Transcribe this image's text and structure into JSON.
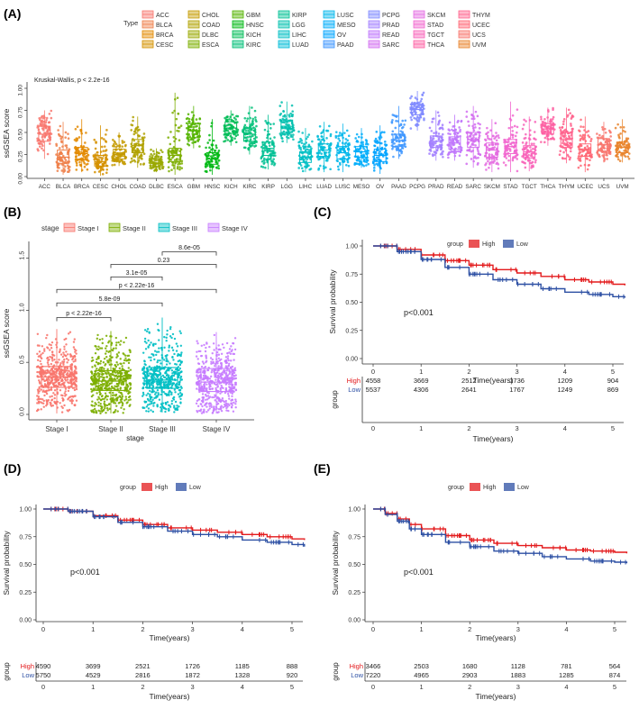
{
  "panels": {
    "A": {
      "label": "(A)"
    },
    "B": {
      "label": "(B)"
    },
    "C": {
      "label": "(C)"
    },
    "D": {
      "label": "(D)"
    },
    "E": {
      "label": "(E)"
    }
  },
  "chart_data": [
    {
      "id": "A",
      "type": "box",
      "title": "",
      "annotation": "Kruskal-Wallis, p < 2.2e-16",
      "xlabel": "",
      "ylabel": "ssGSEA score",
      "ylim": [
        0,
        1
      ],
      "yticks": [
        "0.00",
        "0.25",
        "0.50",
        "0.75",
        "1.00"
      ],
      "legend_title": "Type",
      "categories": [
        "ACC",
        "BLCA",
        "BRCA",
        "CESC",
        "CHOL",
        "COAD",
        "DLBC",
        "ESCA",
        "GBM",
        "HNSC",
        "KICH",
        "KIRC",
        "KIRP",
        "LGG",
        "LIHC",
        "LUAD",
        "LUSC",
        "MESO",
        "OV",
        "PAAD",
        "PCPG",
        "PRAD",
        "READ",
        "SARC",
        "SKCM",
        "STAD",
        "TGCT",
        "THCA",
        "THYM",
        "UCEC",
        "UCS",
        "UVM"
      ],
      "colors": [
        "#F8766D",
        "#EF7F49",
        "#E38900",
        "#D59100",
        "#C49A00",
        "#B0A100",
        "#99A800",
        "#7CAE00",
        "#53B400",
        "#00B813",
        "#00BC56",
        "#00BF77",
        "#00C094",
        "#00C0AE",
        "#00BFC4",
        "#00BCD8",
        "#00B6EB",
        "#00ADFA",
        "#00A3FF",
        "#3E96FF",
        "#7F89FF",
        "#A27FFF",
        "#BF76FC",
        "#D26DF0",
        "#E46BE1",
        "#F166CF",
        "#F863B9",
        "#FD61A3",
        "#FF628C",
        "#FF6674",
        "#F8766D",
        "#E9842C"
      ],
      "medians": [
        0.48,
        0.22,
        0.26,
        0.17,
        0.25,
        0.35,
        0.15,
        0.24,
        0.52,
        0.2,
        0.55,
        0.48,
        0.32,
        0.57,
        0.22,
        0.3,
        0.27,
        0.28,
        0.24,
        0.41,
        0.76,
        0.4,
        0.38,
        0.42,
        0.3,
        0.34,
        0.28,
        0.54,
        0.42,
        0.3,
        0.36,
        0.33
      ],
      "q1": [
        0.4,
        0.15,
        0.19,
        0.12,
        0.2,
        0.27,
        0.11,
        0.17,
        0.44,
        0.14,
        0.49,
        0.4,
        0.24,
        0.5,
        0.16,
        0.23,
        0.2,
        0.22,
        0.17,
        0.34,
        0.7,
        0.33,
        0.31,
        0.33,
        0.22,
        0.26,
        0.21,
        0.48,
        0.33,
        0.23,
        0.29,
        0.27
      ],
      "q3": [
        0.57,
        0.3,
        0.33,
        0.24,
        0.31,
        0.42,
        0.2,
        0.32,
        0.6,
        0.27,
        0.62,
        0.55,
        0.39,
        0.64,
        0.28,
        0.37,
        0.34,
        0.34,
        0.31,
        0.48,
        0.82,
        0.46,
        0.45,
        0.5,
        0.38,
        0.42,
        0.35,
        0.6,
        0.5,
        0.37,
        0.43,
        0.39
      ],
      "min": [
        0.2,
        0.02,
        0.05,
        0.01,
        0.12,
        0.1,
        0.05,
        0.02,
        0.32,
        0.02,
        0.35,
        0.25,
        0.08,
        0.38,
        0.05,
        0.05,
        0.05,
        0.1,
        0.03,
        0.2,
        0.52,
        0.18,
        0.18,
        0.1,
        0.05,
        0.05,
        0.06,
        0.35,
        0.15,
        0.05,
        0.16,
        0.16
      ],
      "max": [
        0.75,
        0.62,
        0.65,
        0.58,
        0.5,
        0.68,
        0.32,
        0.95,
        0.8,
        0.65,
        0.75,
        0.8,
        0.7,
        0.85,
        0.55,
        0.62,
        0.6,
        0.55,
        0.58,
        0.8,
        0.97,
        0.75,
        0.7,
        0.8,
        0.65,
        0.85,
        0.68,
        0.78,
        0.78,
        0.68,
        0.62,
        0.65
      ]
    },
    {
      "id": "B",
      "type": "box",
      "title": "",
      "xlabel": "stage",
      "ylabel": "ssGSEA score",
      "ylim": [
        0,
        1.6
      ],
      "yticks": [
        "0.0",
        "0.5",
        "1.0",
        "1.5"
      ],
      "legend_title": "stage",
      "categories": [
        "Stage I",
        "Stage II",
        "Stage III",
        "Stage IV"
      ],
      "colors": [
        "#F8766D",
        "#7CAE00",
        "#00BFC4",
        "#C77CFF"
      ],
      "medians": [
        0.36,
        0.32,
        0.33,
        0.31
      ],
      "q1": [
        0.26,
        0.23,
        0.25,
        0.22
      ],
      "q3": [
        0.46,
        0.42,
        0.45,
        0.44
      ],
      "min": [
        0.01,
        0.01,
        0.02,
        0.01
      ],
      "max": [
        0.82,
        0.8,
        0.93,
        0.79
      ],
      "comparisons": [
        {
          "from": 0,
          "to": 1,
          "y": 0.93,
          "label": "p < 2.22e-16"
        },
        {
          "from": 0,
          "to": 2,
          "y": 1.07,
          "label": "5.8e-09"
        },
        {
          "from": 0,
          "to": 3,
          "y": 1.2,
          "label": "p < 2.22e-16"
        },
        {
          "from": 1,
          "to": 2,
          "y": 1.32,
          "label": "3.1e-05"
        },
        {
          "from": 1,
          "to": 3,
          "y": 1.44,
          "label": "0.23"
        },
        {
          "from": 2,
          "to": 3,
          "y": 1.56,
          "label": "8.6e-05"
        }
      ]
    },
    {
      "id": "C",
      "type": "line",
      "xlabel": "Time(years)",
      "ylabel": "Survival probability",
      "xlim": [
        0,
        5.3
      ],
      "ylim": [
        0,
        1
      ],
      "xticks": [
        "0",
        "1",
        "2",
        "3",
        "4",
        "5"
      ],
      "yticks": [
        "0.00",
        "0.25",
        "0.50",
        "0.75",
        "1.00"
      ],
      "legend_title": "group",
      "pvalue": "p<0.001",
      "risk_table_title": "group",
      "risk_table_xlabel": "Time(years)",
      "series": [
        {
          "name": "High",
          "color": "#E31A1C",
          "x": [
            0,
            0.5,
            1,
            1.5,
            2,
            2.5,
            3,
            3.5,
            4,
            4.5,
            5,
            5.25
          ],
          "y": [
            1.0,
            0.97,
            0.92,
            0.87,
            0.83,
            0.79,
            0.76,
            0.73,
            0.7,
            0.68,
            0.66,
            0.65
          ],
          "at_risk": [
            "4558",
            "3669",
            "2512",
            "1736",
            "1209",
            "904"
          ]
        },
        {
          "name": "Low",
          "color": "#2C4FA3",
          "x": [
            0,
            0.5,
            1,
            1.5,
            2,
            2.5,
            3,
            3.5,
            4,
            4.5,
            5,
            5.25
          ],
          "y": [
            1.0,
            0.95,
            0.88,
            0.81,
            0.75,
            0.7,
            0.66,
            0.62,
            0.59,
            0.57,
            0.55,
            0.54
          ],
          "at_risk": [
            "5537",
            "4306",
            "2641",
            "1767",
            "1249",
            "869"
          ]
        }
      ]
    },
    {
      "id": "D",
      "type": "line",
      "xlabel": "Time(years)",
      "ylabel": "Survival probability",
      "xlim": [
        0,
        5.3
      ],
      "ylim": [
        0,
        1
      ],
      "xticks": [
        "0",
        "1",
        "2",
        "3",
        "4",
        "5"
      ],
      "yticks": [
        "0.00",
        "0.25",
        "0.50",
        "0.75",
        "1.00"
      ],
      "legend_title": "group",
      "pvalue": "p<0.001",
      "risk_table_title": "group",
      "risk_table_xlabel": "Time(years)",
      "series": [
        {
          "name": "High",
          "color": "#E31A1C",
          "x": [
            0,
            0.5,
            1,
            1.5,
            2,
            2.5,
            3,
            3.5,
            4,
            4.5,
            5,
            5.25
          ],
          "y": [
            1.0,
            0.98,
            0.94,
            0.9,
            0.86,
            0.83,
            0.81,
            0.79,
            0.77,
            0.75,
            0.73,
            0.72
          ],
          "at_risk": [
            "4590",
            "3699",
            "2521",
            "1726",
            "1185",
            "888"
          ]
        },
        {
          "name": "Low",
          "color": "#2C4FA3",
          "x": [
            0,
            0.5,
            1,
            1.5,
            2,
            2.5,
            3,
            3.5,
            4,
            4.5,
            5,
            5.25
          ],
          "y": [
            1.0,
            0.98,
            0.93,
            0.88,
            0.84,
            0.8,
            0.77,
            0.75,
            0.72,
            0.7,
            0.68,
            0.66
          ],
          "at_risk": [
            "5750",
            "4529",
            "2816",
            "1872",
            "1328",
            "920"
          ]
        }
      ]
    },
    {
      "id": "E",
      "type": "line",
      "xlabel": "Time(years)",
      "ylabel": "Survival probability",
      "xlim": [
        0,
        5.3
      ],
      "ylim": [
        0,
        1
      ],
      "xticks": [
        "0",
        "1",
        "2",
        "3",
        "4",
        "5"
      ],
      "yticks": [
        "0.00",
        "0.25",
        "0.50",
        "0.75",
        "1.00"
      ],
      "legend_title": "group",
      "pvalue": "p<0.001",
      "risk_table_title": "group",
      "risk_table_xlabel": "Time(years)",
      "series": [
        {
          "name": "High",
          "color": "#E31A1C",
          "x": [
            0,
            0.25,
            0.5,
            0.75,
            1,
            1.5,
            2,
            2.5,
            3,
            3.5,
            4,
            4.5,
            5,
            5.25
          ],
          "y": [
            1.0,
            0.96,
            0.91,
            0.86,
            0.82,
            0.76,
            0.72,
            0.69,
            0.67,
            0.65,
            0.63,
            0.62,
            0.61,
            0.6
          ],
          "at_risk": [
            "3466",
            "2503",
            "1680",
            "1128",
            "781",
            "564"
          ]
        },
        {
          "name": "Low",
          "color": "#2C4FA3",
          "x": [
            0,
            0.25,
            0.5,
            0.75,
            1,
            1.5,
            2,
            2.5,
            3,
            3.5,
            4,
            4.5,
            5,
            5.25
          ],
          "y": [
            1.0,
            0.95,
            0.89,
            0.82,
            0.77,
            0.7,
            0.66,
            0.62,
            0.6,
            0.57,
            0.55,
            0.53,
            0.52,
            0.51
          ],
          "at_risk": [
            "7220",
            "4965",
            "2903",
            "1883",
            "1285",
            "874"
          ]
        }
      ]
    }
  ]
}
